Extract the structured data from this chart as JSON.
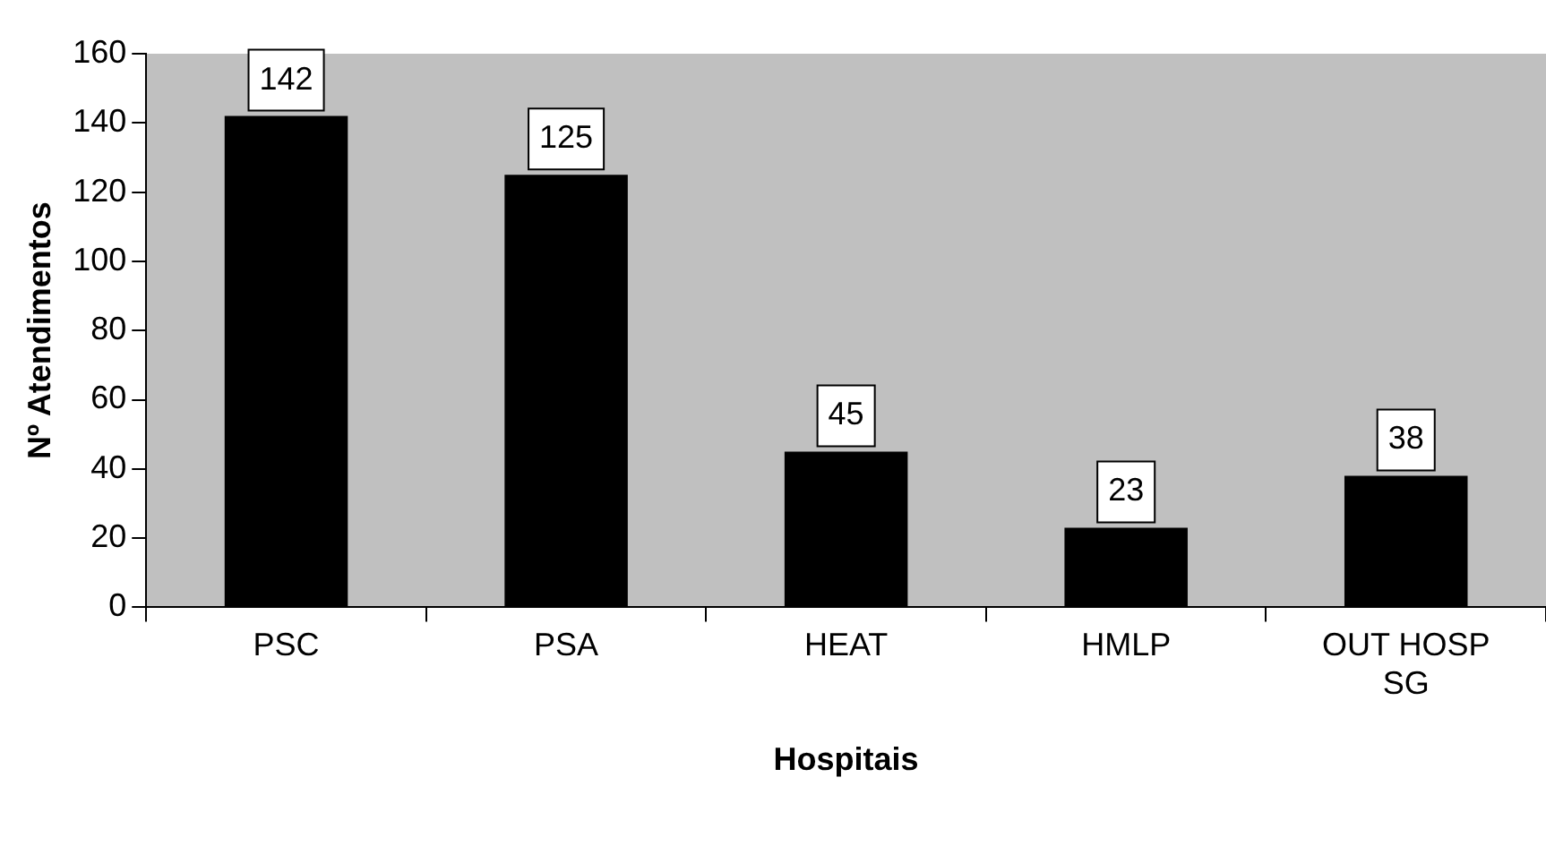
{
  "chart_data": {
    "type": "bar",
    "xlabel": "Hospitais",
    "ylabel": "Nº Atendimentos",
    "categories": [
      "PSC",
      "PSA",
      "HEAT",
      "HMLP",
      "OUT HOSP SG"
    ],
    "values": [
      142,
      125,
      45,
      23,
      38
    ],
    "color": "#000000",
    "ylim": [
      0,
      160
    ],
    "yticks": [
      0,
      20,
      40,
      60,
      80,
      100,
      120,
      140,
      160
    ],
    "grid": false,
    "legend": false,
    "data_labels": true
  }
}
